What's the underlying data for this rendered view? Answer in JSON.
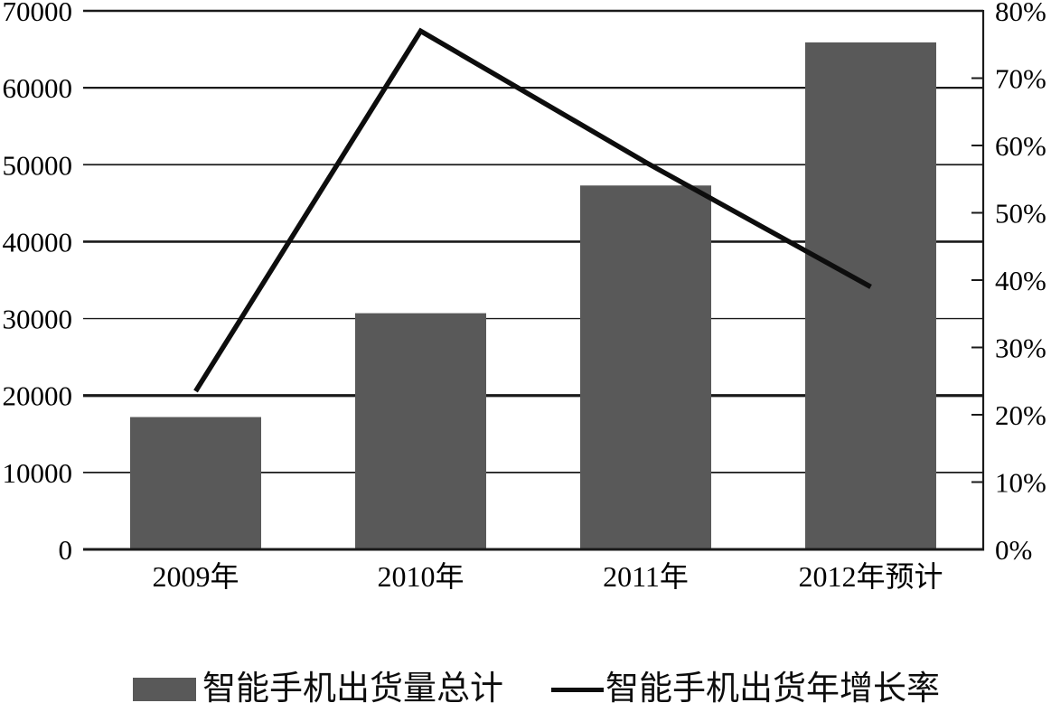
{
  "chart_data": {
    "type": "combo",
    "title": "",
    "categories": [
      "2009年",
      "2010年",
      "2011年",
      "2012年预计"
    ],
    "series": [
      {
        "name": "智能手机出货量总计",
        "type": "bar",
        "axis": "left",
        "color": "#595959",
        "values": [
          17200,
          30700,
          47300,
          65900
        ]
      },
      {
        "name": "智能手机出货年增长率",
        "type": "line",
        "axis": "right",
        "color": "#0d0d0d",
        "values": [
          23.5,
          77,
          57.5,
          39
        ]
      }
    ],
    "left_axis": {
      "min": 0,
      "max": 70000,
      "step": 10000,
      "labels": [
        "0",
        "10000",
        "20000",
        "30000",
        "40000",
        "50000",
        "60000",
        "70000"
      ]
    },
    "right_axis": {
      "min": 0,
      "max": 80,
      "step": 10,
      "labels": [
        "0%",
        "10%",
        "20%",
        "30%",
        "40%",
        "50%",
        "60%",
        "70%",
        "80%"
      ]
    },
    "grid": "horizontal",
    "legend_position": "bottom",
    "colors": {
      "background": "#ffffff",
      "bar": "#595959",
      "line": "#0d0d0d",
      "grid": "#1a1a1a",
      "text": "#000000"
    }
  }
}
